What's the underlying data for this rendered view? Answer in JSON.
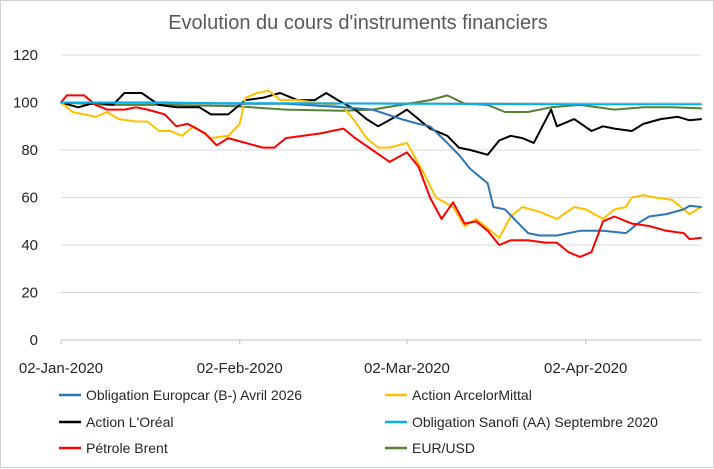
{
  "chart_data": {
    "type": "line",
    "title": "Evolution du cours d'instruments financiers",
    "xlabel": "",
    "ylabel": "",
    "ylim": [
      0,
      120
    ],
    "yticks": [
      0,
      20,
      40,
      60,
      80,
      100,
      120
    ],
    "xlim": [
      "2020-01-02",
      "2020-04-22"
    ],
    "xticks": [
      {
        "date": "2020-01-02",
        "label": "02-Jan-2020"
      },
      {
        "date": "2020-02-02",
        "label": "02-Feb-2020"
      },
      {
        "date": "2020-03-02",
        "label": "02-Mar-2020"
      },
      {
        "date": "2020-04-02",
        "label": "02-Apr-2020"
      }
    ],
    "grid": "horizontal",
    "legend_position": "bottom",
    "series": [
      {
        "name": "Obligation Europcar (B-) Avril 2026",
        "color": "#2e75b6",
        "points": [
          [
            "2020-01-02",
            100
          ],
          [
            "2020-01-10",
            100
          ],
          [
            "2020-01-20",
            100
          ],
          [
            "2020-02-01",
            99.5
          ],
          [
            "2020-02-10",
            99.5
          ],
          [
            "2020-02-20",
            98
          ],
          [
            "2020-02-25",
            97
          ],
          [
            "2020-03-01",
            93
          ],
          [
            "2020-03-04",
            91
          ],
          [
            "2020-03-06",
            90
          ],
          [
            "2020-03-09",
            83
          ],
          [
            "2020-03-11",
            78
          ],
          [
            "2020-03-13",
            72
          ],
          [
            "2020-03-16",
            66
          ],
          [
            "2020-03-17",
            56
          ],
          [
            "2020-03-19",
            55
          ],
          [
            "2020-03-21",
            50
          ],
          [
            "2020-03-23",
            45
          ],
          [
            "2020-03-25",
            44
          ],
          [
            "2020-03-28",
            44
          ],
          [
            "2020-04-01",
            46
          ],
          [
            "2020-04-05",
            46
          ],
          [
            "2020-04-09",
            45
          ],
          [
            "2020-04-11",
            49
          ],
          [
            "2020-04-13",
            52
          ],
          [
            "2020-04-16",
            53
          ],
          [
            "2020-04-19",
            55
          ],
          [
            "2020-04-20",
            56.5
          ],
          [
            "2020-04-22",
            56
          ]
        ]
      },
      {
        "name": "Action ArcelorMittal",
        "color": "#ffc000",
        "points": [
          [
            "2020-01-02",
            100
          ],
          [
            "2020-01-04",
            96
          ],
          [
            "2020-01-06",
            95
          ],
          [
            "2020-01-08",
            94
          ],
          [
            "2020-01-10",
            96
          ],
          [
            "2020-01-12",
            93
          ],
          [
            "2020-01-15",
            92
          ],
          [
            "2020-01-17",
            92
          ],
          [
            "2020-01-19",
            88
          ],
          [
            "2020-01-21",
            88
          ],
          [
            "2020-01-23",
            86
          ],
          [
            "2020-01-25",
            90
          ],
          [
            "2020-01-28",
            85
          ],
          [
            "2020-01-31",
            86
          ],
          [
            "2020-02-02",
            91
          ],
          [
            "2020-02-03",
            102
          ],
          [
            "2020-02-05",
            104
          ],
          [
            "2020-02-07",
            105
          ],
          [
            "2020-02-09",
            101
          ],
          [
            "2020-02-12",
            101
          ],
          [
            "2020-02-15",
            100
          ],
          [
            "2020-02-18",
            99
          ],
          [
            "2020-02-20",
            98
          ],
          [
            "2020-02-22",
            92
          ],
          [
            "2020-02-24",
            85
          ],
          [
            "2020-02-26",
            81
          ],
          [
            "2020-02-28",
            81
          ],
          [
            "2020-03-02",
            83
          ],
          [
            "2020-03-05",
            70
          ],
          [
            "2020-03-07",
            60
          ],
          [
            "2020-03-10",
            56
          ],
          [
            "2020-03-12",
            48
          ],
          [
            "2020-03-14",
            51
          ],
          [
            "2020-03-16",
            47
          ],
          [
            "2020-03-18",
            43
          ],
          [
            "2020-03-20",
            52
          ],
          [
            "2020-03-22",
            56
          ],
          [
            "2020-03-25",
            54
          ],
          [
            "2020-03-28",
            51
          ],
          [
            "2020-03-31",
            56
          ],
          [
            "2020-04-02",
            55
          ],
          [
            "2020-04-05",
            51
          ],
          [
            "2020-04-07",
            55
          ],
          [
            "2020-04-09",
            56
          ],
          [
            "2020-04-10",
            60
          ],
          [
            "2020-04-12",
            61
          ],
          [
            "2020-04-14",
            60
          ],
          [
            "2020-04-17",
            59
          ],
          [
            "2020-04-19",
            55
          ],
          [
            "2020-04-20",
            53
          ],
          [
            "2020-04-22",
            56
          ]
        ]
      },
      {
        "name": "Action L'Oréal",
        "color": "#000000",
        "points": [
          [
            "2020-01-02",
            100
          ],
          [
            "2020-01-05",
            98
          ],
          [
            "2020-01-08",
            100
          ],
          [
            "2020-01-11",
            99
          ],
          [
            "2020-01-13",
            104
          ],
          [
            "2020-01-16",
            104
          ],
          [
            "2020-01-19",
            99
          ],
          [
            "2020-01-22",
            98
          ],
          [
            "2020-01-26",
            98
          ],
          [
            "2020-01-28",
            95
          ],
          [
            "2020-01-31",
            95
          ],
          [
            "2020-02-03",
            101
          ],
          [
            "2020-02-06",
            102
          ],
          [
            "2020-02-09",
            104
          ],
          [
            "2020-02-12",
            101
          ],
          [
            "2020-02-15",
            101
          ],
          [
            "2020-02-17",
            104
          ],
          [
            "2020-02-19",
            101
          ],
          [
            "2020-02-22",
            97
          ],
          [
            "2020-02-24",
            93
          ],
          [
            "2020-02-26",
            90
          ],
          [
            "2020-02-29",
            94
          ],
          [
            "2020-03-02",
            97
          ],
          [
            "2020-03-04",
            93
          ],
          [
            "2020-03-06",
            89
          ],
          [
            "2020-03-09",
            86
          ],
          [
            "2020-03-11",
            81
          ],
          [
            "2020-03-13",
            80
          ],
          [
            "2020-03-16",
            78
          ],
          [
            "2020-03-18",
            84
          ],
          [
            "2020-03-20",
            86
          ],
          [
            "2020-03-22",
            85
          ],
          [
            "2020-03-24",
            83
          ],
          [
            "2020-03-27",
            97
          ],
          [
            "2020-03-28",
            90
          ],
          [
            "2020-03-31",
            93
          ],
          [
            "2020-04-03",
            88
          ],
          [
            "2020-04-05",
            90
          ],
          [
            "2020-04-07",
            89
          ],
          [
            "2020-04-10",
            88
          ],
          [
            "2020-04-12",
            91
          ],
          [
            "2020-04-15",
            93
          ],
          [
            "2020-04-18",
            94
          ],
          [
            "2020-04-20",
            92.5
          ],
          [
            "2020-04-22",
            93
          ]
        ]
      },
      {
        "name": "Obligation Sanofi (AA) Septembre 2020",
        "color": "#00b0f0",
        "points": [
          [
            "2020-01-02",
            100
          ],
          [
            "2020-02-01",
            99.7
          ],
          [
            "2020-03-01",
            99.5
          ],
          [
            "2020-04-01",
            99.3
          ],
          [
            "2020-04-22",
            99.3
          ]
        ]
      },
      {
        "name": "Pétrole Brent",
        "color": "#ff0000",
        "points": [
          [
            "2020-01-02",
            100
          ],
          [
            "2020-01-03",
            103
          ],
          [
            "2020-01-06",
            103
          ],
          [
            "2020-01-08",
            99
          ],
          [
            "2020-01-10",
            97
          ],
          [
            "2020-01-13",
            97
          ],
          [
            "2020-01-15",
            98
          ],
          [
            "2020-01-17",
            97
          ],
          [
            "2020-01-20",
            95
          ],
          [
            "2020-01-22",
            90
          ],
          [
            "2020-01-24",
            91
          ],
          [
            "2020-01-27",
            87
          ],
          [
            "2020-01-29",
            82
          ],
          [
            "2020-01-31",
            85
          ],
          [
            "2020-02-03",
            83
          ],
          [
            "2020-02-06",
            81
          ],
          [
            "2020-02-08",
            81
          ],
          [
            "2020-02-10",
            85
          ],
          [
            "2020-02-13",
            86
          ],
          [
            "2020-02-16",
            87
          ],
          [
            "2020-02-18",
            88
          ],
          [
            "2020-02-20",
            89
          ],
          [
            "2020-02-22",
            85
          ],
          [
            "2020-02-25",
            80
          ],
          [
            "2020-02-28",
            75
          ],
          [
            "2020-03-02",
            79
          ],
          [
            "2020-03-04",
            73
          ],
          [
            "2020-03-06",
            60
          ],
          [
            "2020-03-08",
            51
          ],
          [
            "2020-03-10",
            58
          ],
          [
            "2020-03-12",
            49
          ],
          [
            "2020-03-14",
            50
          ],
          [
            "2020-03-16",
            46
          ],
          [
            "2020-03-18",
            40
          ],
          [
            "2020-03-20",
            42
          ],
          [
            "2020-03-23",
            42
          ],
          [
            "2020-03-26",
            41
          ],
          [
            "2020-03-28",
            41
          ],
          [
            "2020-03-30",
            37
          ],
          [
            "2020-04-01",
            35
          ],
          [
            "2020-04-03",
            37
          ],
          [
            "2020-04-05",
            50
          ],
          [
            "2020-04-07",
            52
          ],
          [
            "2020-04-10",
            49
          ],
          [
            "2020-04-13",
            48
          ],
          [
            "2020-04-16",
            46
          ],
          [
            "2020-04-19",
            45
          ],
          [
            "2020-04-20",
            42.5
          ],
          [
            "2020-04-22",
            43
          ]
        ]
      },
      {
        "name": "EUR/USD",
        "color": "#548235",
        "points": [
          [
            "2020-01-02",
            100
          ],
          [
            "2020-01-10",
            99
          ],
          [
            "2020-01-20",
            99
          ],
          [
            "2020-02-01",
            98.5
          ],
          [
            "2020-02-10",
            97
          ],
          [
            "2020-02-20",
            96.5
          ],
          [
            "2020-02-25",
            97
          ],
          [
            "2020-03-01",
            99
          ],
          [
            "2020-03-06",
            101
          ],
          [
            "2020-03-09",
            103
          ],
          [
            "2020-03-12",
            99.5
          ],
          [
            "2020-03-16",
            99
          ],
          [
            "2020-03-19",
            96
          ],
          [
            "2020-03-23",
            96
          ],
          [
            "2020-03-27",
            98
          ],
          [
            "2020-04-01",
            99
          ],
          [
            "2020-04-07",
            97
          ],
          [
            "2020-04-12",
            98
          ],
          [
            "2020-04-17",
            98
          ],
          [
            "2020-04-22",
            97.5
          ]
        ]
      }
    ]
  }
}
